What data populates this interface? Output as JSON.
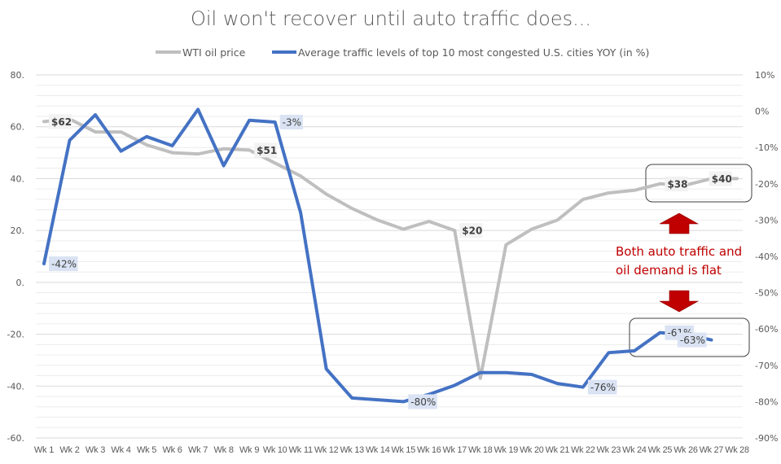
{
  "chart_data": {
    "type": "line",
    "title": "Oil won't recover until auto traffic does...",
    "xlabel": "",
    "ylabel": "",
    "legend_position": "top",
    "grid": true,
    "categories": [
      "Wk 1",
      "Wk 2",
      "Wk 3",
      "Wk 4",
      "Wk 5",
      "Wk 6",
      "Wk 7",
      "Wk 8",
      "Wk 9",
      "Wk 10",
      "Wk 11",
      "Wk 12",
      "Wk 13",
      "Wk 14",
      "Wk 15",
      "Wk 16",
      "Wk 17",
      "Wk 18",
      "Wk 19",
      "Wk 20",
      "Wk 21",
      "Wk 22",
      "Wk 23",
      "Wk 24",
      "Wk 25",
      "Wk 26",
      "Wk 27",
      "Wk 28"
    ],
    "y_left": {
      "range": [
        -60,
        80
      ],
      "ticks": [
        80,
        60,
        40,
        20,
        0,
        -20,
        -40,
        -60
      ],
      "tick_labels": [
        "80.",
        "60.",
        "40.",
        "20.",
        "0.",
        "-20.",
        "-40.",
        "-60."
      ]
    },
    "y_right": {
      "range": [
        -90,
        10
      ],
      "ticks": [
        10,
        0,
        -10,
        -20,
        -30,
        -40,
        -50,
        -60,
        -70,
        -80,
        -90
      ],
      "tick_labels": [
        "10%",
        "0%",
        "-10%",
        "-20%",
        "-30%",
        "-40%",
        "-50%",
        "-60%",
        "-70%",
        "-80%",
        "-90%"
      ]
    },
    "series": [
      {
        "name": "WTI oil price",
        "axis": "left",
        "color": "#bfbfbf",
        "values": [
          62,
          63,
          58,
          58,
          53,
          50,
          49.5,
          51.5,
          51,
          46,
          41,
          34,
          28.5,
          24,
          20.5,
          23.5,
          20,
          -37,
          14.5,
          20.5,
          24,
          32,
          34.5,
          35.5,
          38,
          37.5,
          40,
          40
        ],
        "labels": [
          {
            "index": 0,
            "text": "$62"
          },
          {
            "index": 8,
            "text": "$51"
          },
          {
            "index": 16,
            "text": "$20"
          },
          {
            "index": 24,
            "text": "$38"
          },
          {
            "index": 27,
            "text": "$40"
          }
        ]
      },
      {
        "name": "Average traffic levels of top 10 most congested U.S. cities YOY (in %)",
        "axis": "right",
        "color": "#4472c4",
        "values": [
          -42,
          -8,
          -1,
          -11,
          -7,
          -9.5,
          0.5,
          -15,
          -2.5,
          -3,
          -28,
          -71,
          -79,
          -79.5,
          -80,
          -78,
          -75.5,
          -72,
          -72,
          -72.5,
          -75,
          -76,
          -66.5,
          -66,
          -61,
          -61.5,
          -63,
          null
        ],
        "labels": [
          {
            "index": 0,
            "text": "-42%"
          },
          {
            "index": 9,
            "text": "-3%"
          },
          {
            "index": 14,
            "text": "-80%"
          },
          {
            "index": 21,
            "text": "-76%"
          },
          {
            "index": 24,
            "text": "-61%"
          },
          {
            "index": 26,
            "text": "-63%"
          }
        ]
      }
    ],
    "annotations": {
      "text_line1": "Both auto traffic and",
      "text_line2": "oil demand is flat",
      "color": "#c00000",
      "arrow_up_color": "#c00000",
      "arrow_down_color": "#c00000"
    }
  }
}
